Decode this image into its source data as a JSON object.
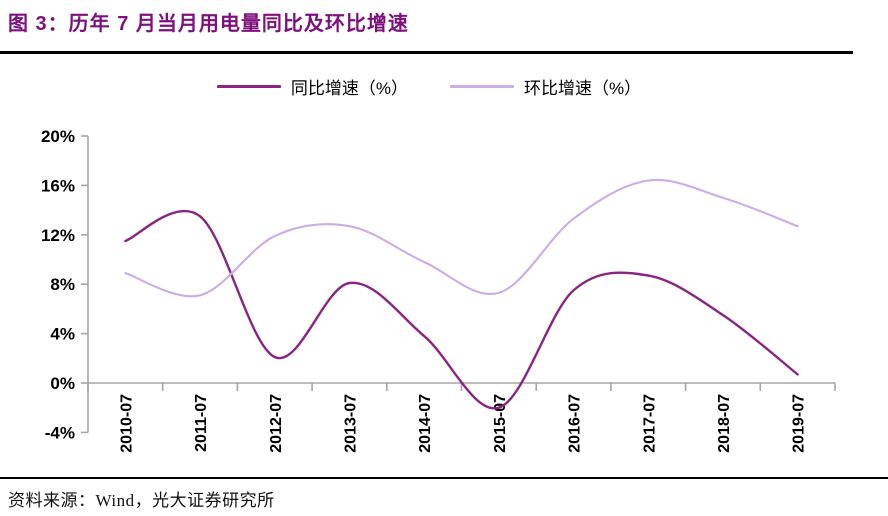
{
  "header": {
    "title": "图 3：历年 7 月当月用电量同比及环比增速"
  },
  "colors": {
    "title_purple": "#7D107D",
    "axis_gray": "#A6A6A6",
    "tick_text": "#000000",
    "yoy_line": "#8A2483",
    "mom_line": "#CBAEE6"
  },
  "footer": {
    "source": "资料来源：Wind，光大证券研究所"
  },
  "chart_data": {
    "type": "line",
    "title": "历年 7 月当月用电量同比及环比增速",
    "xlabel": "",
    "ylabel": "",
    "categories": [
      "2010-07",
      "2011-07",
      "2012-07",
      "2013-07",
      "2014-07",
      "2015-07",
      "2016-07",
      "2017-07",
      "2018-07",
      "2019-07"
    ],
    "series": [
      {
        "name": "同比增速（%）",
        "color": "#8A2483",
        "values": [
          11.5,
          13.5,
          2.1,
          8.1,
          3.8,
          -2.0,
          7.5,
          8.7,
          5.5,
          0.7
        ]
      },
      {
        "name": "环比增速（%）",
        "color": "#CBAEE6",
        "values": [
          8.9,
          7.1,
          11.9,
          12.7,
          9.8,
          7.3,
          13.3,
          16.4,
          15.0,
          12.7
        ]
      }
    ],
    "ylim": [
      -4,
      20
    ],
    "y_tick_values": [
      20,
      16,
      12,
      8,
      4,
      0,
      -4
    ],
    "y_ticks": [
      "20%",
      "16%",
      "12%",
      "8%",
      "4%",
      "0%",
      "-4%"
    ],
    "line_style": "smooth",
    "grid": false,
    "legend_position": "top"
  }
}
